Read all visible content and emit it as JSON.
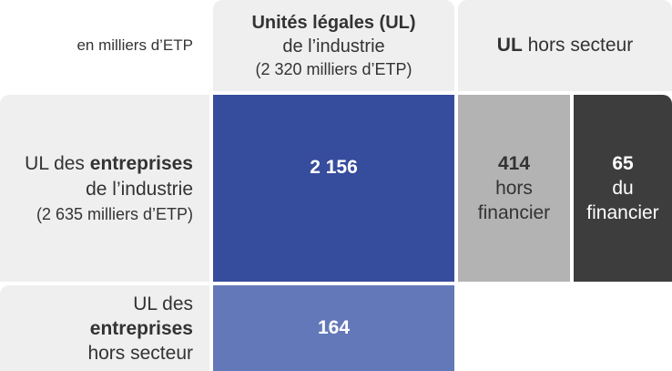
{
  "header": {
    "units": "en milliers d’ETP",
    "col_industrie": {
      "title": "Unités légales (UL)",
      "line2": "de l’industrie",
      "line3": "(2 320 milliers d’ETP)"
    },
    "col_hors": {
      "bold": "UL",
      "rest": " hors secteur"
    }
  },
  "rows": {
    "industrie": {
      "prefix": "UL des ",
      "bold": "entreprises",
      "line2": "de l’industrie",
      "line3": "(2 635 milliers d’ETP)"
    },
    "hors": {
      "line1": "UL des",
      "bold": "entreprises",
      "line3": "hors secteur"
    }
  },
  "cells": {
    "industrie_industrie": "2 156",
    "hors_industrie": "164",
    "hors_financier": {
      "value": "414",
      "line2": "hors",
      "line3": "financier"
    },
    "financier": {
      "value": "65",
      "line2": "du",
      "line3": "financier"
    }
  },
  "colors": {
    "dark_blue": "#364c9c",
    "light_blue": "#6378b9",
    "grey": "#b3b3b3",
    "dark_grey": "#3d3d3d",
    "background": "#efefef"
  }
}
